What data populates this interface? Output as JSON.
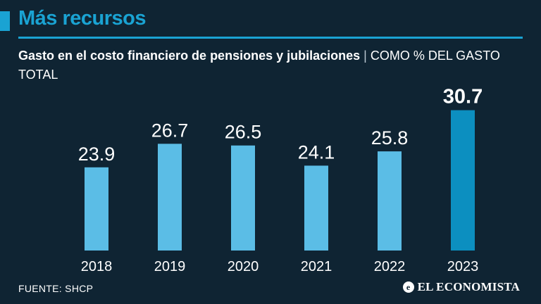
{
  "header": {
    "headline": "Más recursos",
    "subtitle_bold": "Gasto en el costo financiero de pensiones y jubilaciones",
    "subtitle_sep": " | ",
    "subtitle_unit": "COMO % DEL GASTO TOTAL"
  },
  "footer": {
    "source": "FUENTE: SHCP",
    "brand_mark": "e",
    "brand_name": "EL ECONOMISTA"
  },
  "colors": {
    "background": "#0f2433",
    "accent": "#1aa3d3",
    "bar": "#5bbde6",
    "bar_highlight": "#0c8fc0",
    "text": "#ffffff"
  },
  "chart_data": {
    "type": "bar",
    "title": "Gasto en el costo financiero de pensiones y jubilaciones",
    "ylabel": "COMO % DEL GASTO TOTAL",
    "xlabel": "",
    "categories": [
      "2018",
      "2019",
      "2020",
      "2021",
      "2022",
      "2023"
    ],
    "values": [
      23.9,
      26.7,
      26.5,
      24.1,
      25.8,
      30.7
    ],
    "labels": [
      "23.9",
      "26.7",
      "26.5",
      "24.1",
      "25.8",
      "30.7"
    ],
    "highlight_index": 5,
    "ylim": [
      14,
      31
    ],
    "grid": false,
    "legend": "none"
  }
}
